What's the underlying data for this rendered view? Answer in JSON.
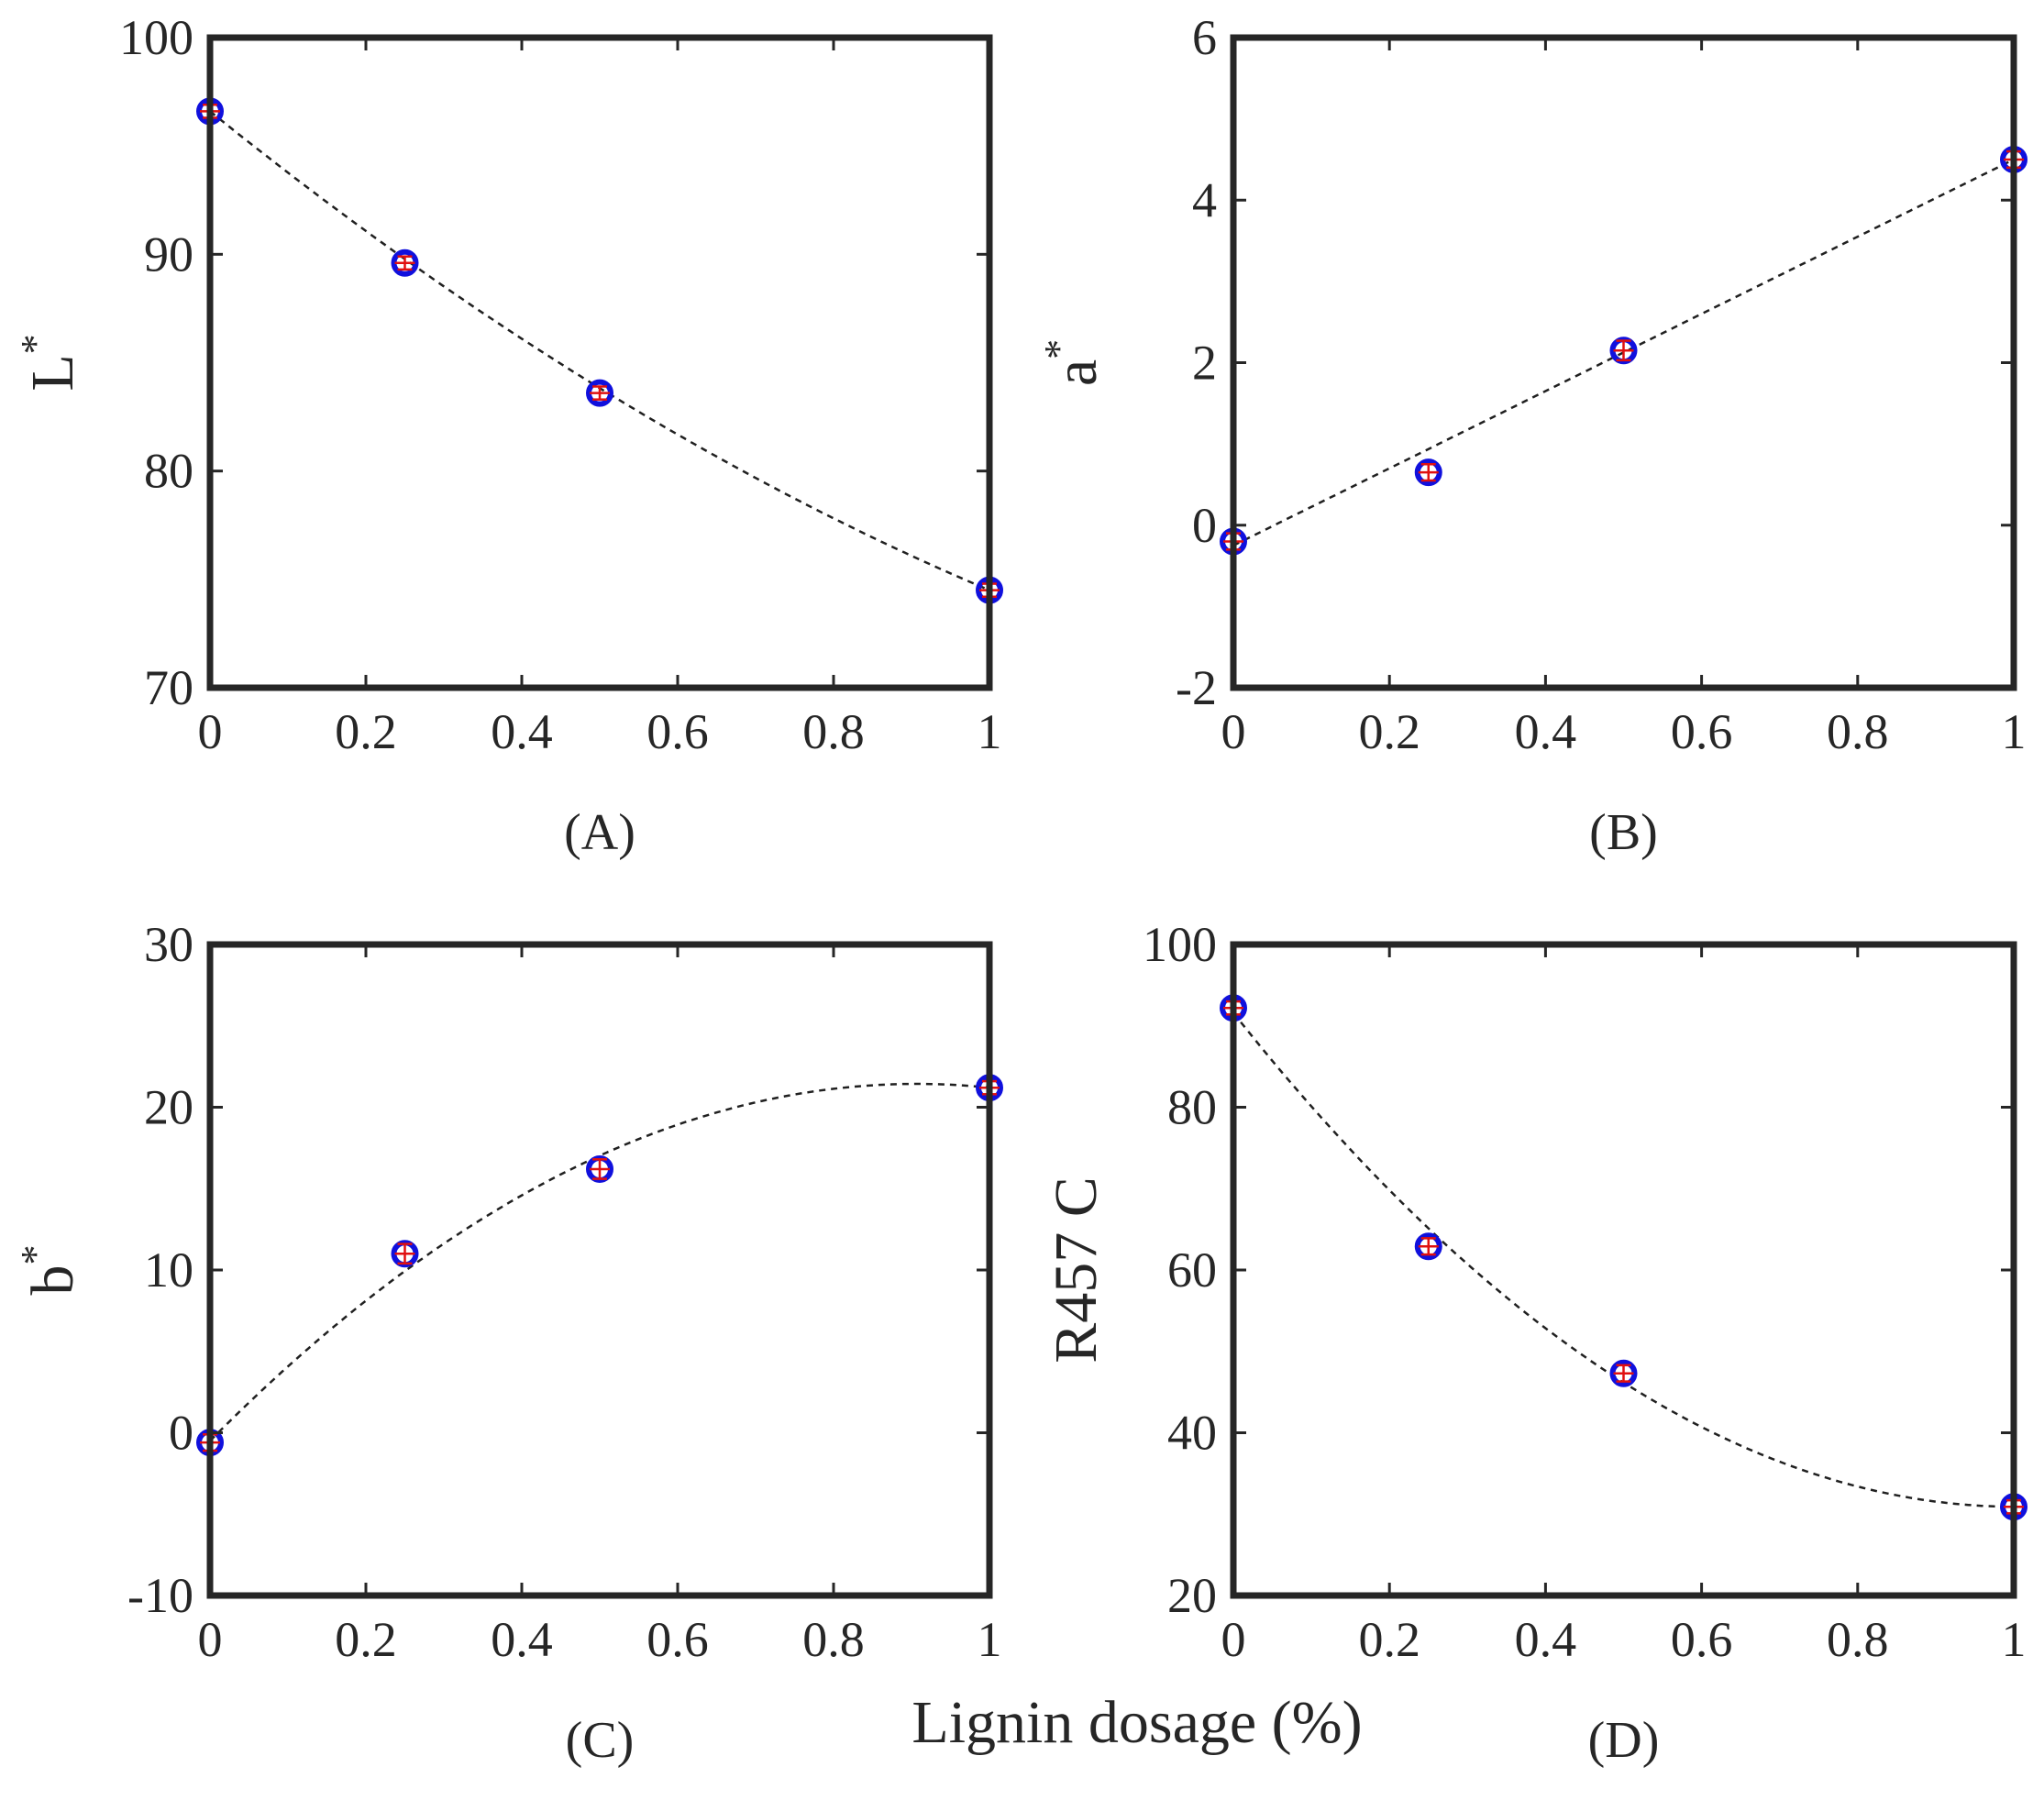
{
  "figure": {
    "common_xlabel": "Lignin dosage (%)"
  },
  "chart_data": [
    {
      "id": "A",
      "type": "scatter",
      "panel_label": "(A)",
      "title": "",
      "xlabel": "",
      "ylabel": "L*",
      "ylabel_main": "L",
      "ylabel_sup": "*",
      "xlim": [
        0,
        1
      ],
      "ylim": [
        70,
        100
      ],
      "xticks": [
        0,
        0.2,
        0.4,
        0.6,
        0.8,
        1
      ],
      "xtick_labels": [
        "0",
        "0.2",
        "0.4",
        "0.6",
        "0.8",
        "1"
      ],
      "yticks": [
        70,
        80,
        90,
        100
      ],
      "ytick_labels": [
        "70",
        "80",
        "90",
        "100"
      ],
      "x": [
        0,
        0.25,
        0.5,
        1
      ],
      "y": [
        96.6,
        89.6,
        83.6,
        74.5
      ],
      "errors": [
        0.3,
        0.3,
        0.3,
        0.3
      ],
      "fit": [
        96.6,
        -29.0,
        6.9
      ],
      "grid": false
    },
    {
      "id": "B",
      "type": "scatter",
      "panel_label": "(B)",
      "title": "",
      "xlabel": "",
      "ylabel": "a*",
      "ylabel_main": "a",
      "ylabel_sup": "*",
      "xlim": [
        0,
        1
      ],
      "ylim": [
        -2,
        6
      ],
      "xticks": [
        0,
        0.2,
        0.4,
        0.6,
        0.8,
        1
      ],
      "xtick_labels": [
        "0",
        "0.2",
        "0.4",
        "0.6",
        "0.8",
        "1"
      ],
      "yticks": [
        -2,
        0,
        2,
        4,
        6
      ],
      "ytick_labels": [
        "-2",
        "0",
        "2",
        "4",
        "6"
      ],
      "x": [
        0,
        0.25,
        0.5,
        1
      ],
      "y": [
        -0.2,
        0.65,
        2.15,
        4.5
      ],
      "errors": [
        0.1,
        0.1,
        0.12,
        0.1
      ],
      "fit": [
        -0.25,
        4.75,
        0.0
      ],
      "grid": false
    },
    {
      "id": "C",
      "type": "scatter",
      "panel_label": "(C)",
      "title": "",
      "xlabel": "",
      "ylabel": "b*",
      "ylabel_main": "b",
      "ylabel_sup": "*",
      "xlim": [
        0,
        1
      ],
      "ylim": [
        -10,
        30
      ],
      "xticks": [
        0,
        0.2,
        0.4,
        0.6,
        0.8,
        1
      ],
      "xtick_labels": [
        "0",
        "0.2",
        "0.4",
        "0.6",
        "0.8",
        "1"
      ],
      "yticks": [
        -10,
        0,
        10,
        20,
        30
      ],
      "ytick_labels": [
        "-10",
        "0",
        "10",
        "20",
        "30"
      ],
      "x": [
        0,
        0.25,
        0.5,
        1
      ],
      "y": [
        -0.6,
        11.0,
        16.2,
        21.2
      ],
      "errors": [
        0.5,
        0.6,
        0.6,
        0.4
      ],
      "fit": [
        -0.5,
        48.4,
        -26.7
      ],
      "grid": false
    },
    {
      "id": "D",
      "type": "scatter",
      "panel_label": "(D)",
      "title": "",
      "xlabel": "",
      "ylabel": "R457 C",
      "ylabel_main": "R457 C",
      "ylabel_sup": "",
      "xlim": [
        0,
        1
      ],
      "ylim": [
        20,
        100
      ],
      "xticks": [
        0,
        0.2,
        0.4,
        0.6,
        0.8,
        1
      ],
      "xtick_labels": [
        "0",
        "0.2",
        "0.4",
        "0.6",
        "0.8",
        "1"
      ],
      "yticks": [
        20,
        40,
        60,
        80,
        100
      ],
      "ytick_labels": [
        "20",
        "40",
        "60",
        "80",
        "100"
      ],
      "x": [
        0,
        0.25,
        0.5,
        1
      ],
      "y": [
        92.2,
        62.9,
        47.3,
        30.9
      ],
      "errors": [
        0.8,
        1.0,
        1.0,
        0.8
      ],
      "fit": [
        91.6,
        -121.0,
        60.3
      ],
      "grid": false
    }
  ],
  "colors": {
    "marker_edge": "#1010dd",
    "error_bar": "#e01010",
    "fit_line": "#202020",
    "axes": "#262626"
  }
}
